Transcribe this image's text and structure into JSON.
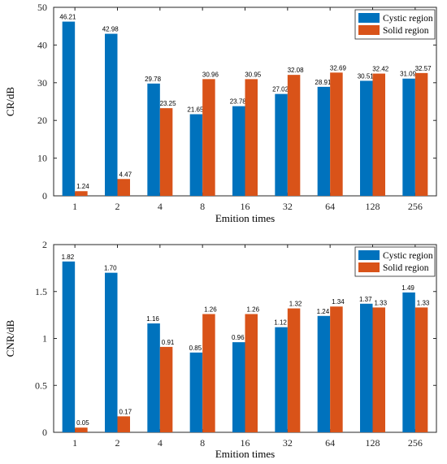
{
  "chart_data": [
    {
      "type": "bar",
      "categories": [
        "1",
        "2",
        "4",
        "8",
        "16",
        "32",
        "64",
        "128",
        "256"
      ],
      "series": [
        {
          "name": "Cystic region",
          "color": "#0072BD",
          "values": [
            46.21,
            42.98,
            29.78,
            21.65,
            23.78,
            27.02,
            28.91,
            30.51,
            31.09
          ],
          "labels": [
            "46.21",
            "42.98",
            "29.78",
            "21.65",
            "23.78",
            "27.02",
            "28.91",
            "30.51",
            "31.09"
          ]
        },
        {
          "name": "Solid region",
          "color": "#D95319",
          "values": [
            1.24,
            4.47,
            23.25,
            30.96,
            30.95,
            32.08,
            32.69,
            32.42,
            32.57
          ],
          "labels": [
            "1.24",
            "4.47",
            "23.25",
            "30.96",
            "30.95",
            "32.08",
            "32.69",
            "32.42",
            "32.57"
          ]
        }
      ],
      "xlabel": "Emition times",
      "ylabel": "CR/dB",
      "ylim": [
        0,
        50
      ],
      "yticks": [
        0,
        10,
        20,
        30,
        40,
        50
      ],
      "ytick_labels": [
        "0",
        "10",
        "20",
        "30",
        "40",
        "50"
      ],
      "grid": false,
      "legend": "top-right"
    },
    {
      "type": "bar",
      "categories": [
        "1",
        "2",
        "4",
        "8",
        "16",
        "32",
        "64",
        "128",
        "256"
      ],
      "series": [
        {
          "name": "Cystic region",
          "color": "#0072BD",
          "values": [
            1.82,
            1.7,
            1.16,
            0.85,
            0.96,
            1.12,
            1.24,
            1.37,
            1.49
          ],
          "labels": [
            "1.82",
            "1.70",
            "1.16",
            "0.85",
            "0.96",
            "1.12",
            "1.24",
            "1.37",
            "1.49"
          ]
        },
        {
          "name": "Solid region",
          "color": "#D95319",
          "values": [
            0.05,
            0.17,
            0.91,
            1.26,
            1.26,
            1.32,
            1.34,
            1.33,
            1.33
          ],
          "labels": [
            "0.05",
            "0.17",
            "0.91",
            "1.26",
            "1.26",
            "1.32",
            "1.34",
            "1.33",
            "1.33"
          ]
        }
      ],
      "xlabel": "Emition times",
      "ylabel": "CNR/dB",
      "ylim": [
        0,
        2
      ],
      "yticks": [
        0,
        0.5,
        1,
        1.5,
        2
      ],
      "ytick_labels": [
        "0",
        "0.5",
        "1",
        "1.5",
        "2"
      ],
      "grid": false,
      "legend": "top-right"
    }
  ]
}
